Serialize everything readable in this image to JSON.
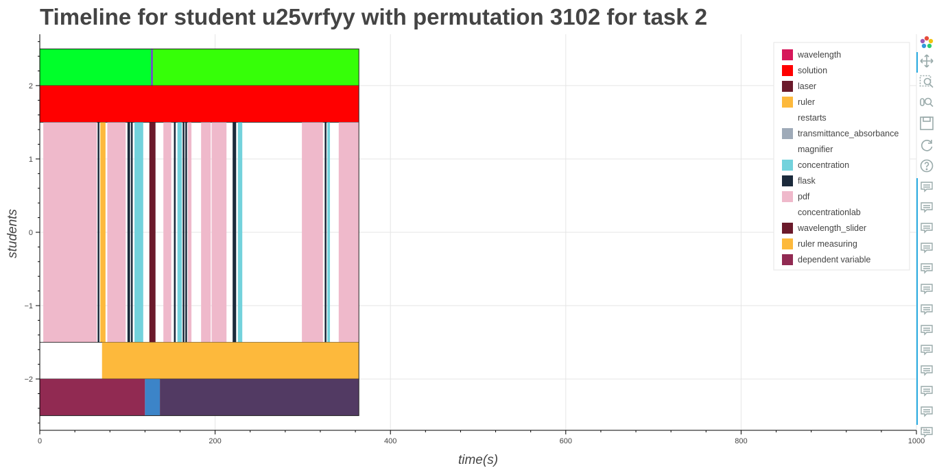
{
  "title": "Timeline for student u25vrfyy with permutation 3102 for task 2",
  "chart_data": {
    "type": "timeline",
    "title": "Timeline for student u25vrfyy with permutation 3102 for task 2",
    "xlabel": "time(s)",
    "ylabel": "students",
    "xlim": [
      0,
      1000
    ],
    "ylim": [
      -2.7,
      2.7
    ],
    "xticks": [
      0,
      200,
      400,
      600,
      800,
      1000
    ],
    "yticks": [
      -2,
      -1,
      0,
      1,
      2
    ],
    "ytick_labels": [
      "−2",
      "−1",
      "0",
      "1",
      "2"
    ],
    "grid": true,
    "legend_position": "top-right",
    "legend": [
      {
        "name": "wavelength",
        "color": "#D6175A"
      },
      {
        "name": "solution",
        "color": "#FF0000"
      },
      {
        "name": "laser",
        "color": "#6B1A2B"
      },
      {
        "name": "ruler",
        "color": "#FDB93C"
      },
      {
        "name": "restarts",
        "color": ""
      },
      {
        "name": "transmittance_absorbance",
        "color": "#9EAAB8"
      },
      {
        "name": "magnifier",
        "color": ""
      },
      {
        "name": "concentration",
        "color": "#73D2DC"
      },
      {
        "name": "flask",
        "color": "#1B2A3B"
      },
      {
        "name": "pdf",
        "color": "#EFB9CB"
      },
      {
        "name": "concentrationlab",
        "color": ""
      },
      {
        "name": "wavelength_slider",
        "color": "#6B1A2B"
      },
      {
        "name": "ruler measuring",
        "color": "#FDB93C"
      },
      {
        "name": "dependent variable",
        "color": "#912A52"
      }
    ],
    "rows": [
      {
        "y0": 2.0,
        "y1": 2.5,
        "segments": [
          {
            "x0": 0,
            "x1": 127,
            "color": "#00FF2A"
          },
          {
            "x0": 127,
            "x1": 129,
            "color": "#6A3BC6"
          },
          {
            "x0": 129,
            "x1": 364,
            "color": "#36FF08"
          }
        ]
      },
      {
        "y0": 1.5,
        "y1": 2.0,
        "segments": [
          {
            "x0": 0,
            "x1": 364,
            "color": "#FF0000"
          }
        ]
      },
      {
        "y0": -1.5,
        "y1": 1.5,
        "segments": [
          {
            "x0": 4,
            "x1": 65,
            "color": "#EFB9CB"
          },
          {
            "x0": 66,
            "x1": 68,
            "color": "#1B2A3B"
          },
          {
            "x0": 69,
            "x1": 75,
            "color": "#FDB93C"
          },
          {
            "x0": 77,
            "x1": 98,
            "color": "#EFB9CB"
          },
          {
            "x0": 100,
            "x1": 103,
            "color": "#1B2A3B"
          },
          {
            "x0": 104,
            "x1": 106,
            "color": "#1B2A3B"
          },
          {
            "x0": 108,
            "x1": 118,
            "color": "#73D2DC"
          },
          {
            "x0": 125,
            "x1": 132,
            "color": "#6B1A2B"
          },
          {
            "x0": 141,
            "x1": 150,
            "color": "#EFB9CB"
          },
          {
            "x0": 153,
            "x1": 155,
            "color": "#1B2A3B"
          },
          {
            "x0": 157,
            "x1": 162,
            "color": "#73D2DC"
          },
          {
            "x0": 163,
            "x1": 165,
            "color": "#1B2A3B"
          },
          {
            "x0": 166,
            "x1": 168,
            "color": "#1B2A3B"
          },
          {
            "x0": 169,
            "x1": 173,
            "color": "#EFB9CB"
          },
          {
            "x0": 184,
            "x1": 195,
            "color": "#EFB9CB"
          },
          {
            "x0": 196,
            "x1": 213,
            "color": "#EFB9CB"
          },
          {
            "x0": 220,
            "x1": 224,
            "color": "#1B2A3B"
          },
          {
            "x0": 226,
            "x1": 231,
            "color": "#73D2DC"
          },
          {
            "x0": 299,
            "x1": 323,
            "color": "#EFB9CB"
          },
          {
            "x0": 325,
            "x1": 327,
            "color": "#1B2A3B"
          },
          {
            "x0": 328,
            "x1": 331,
            "color": "#73D2DC"
          },
          {
            "x0": 341,
            "x1": 364,
            "color": "#EFB9CB"
          }
        ]
      },
      {
        "y0": -2.0,
        "y1": -1.5,
        "segments": [
          {
            "x0": 71,
            "x1": 364,
            "color": "#FDB93C"
          }
        ]
      },
      {
        "y0": -2.5,
        "y1": -2.0,
        "segments": [
          {
            "x0": 0,
            "x1": 120,
            "color": "#912A52"
          },
          {
            "x0": 120,
            "x1": 137,
            "color": "#3C84C8"
          },
          {
            "x0": 137,
            "x1": 364,
            "color": "#523A63"
          }
        ]
      }
    ],
    "outline": {
      "x0": 0,
      "x1": 364,
      "y0": -2.5,
      "y1": 2.5
    }
  },
  "toolbar": {
    "tools": [
      {
        "icon": "bokeh-logo-icon"
      },
      {
        "icon": "pan-icon"
      },
      {
        "icon": "box-zoom-icon"
      },
      {
        "icon": "wheel-zoom-icon"
      },
      {
        "icon": "save-icon"
      },
      {
        "icon": "reset-icon"
      },
      {
        "icon": "help-icon"
      }
    ],
    "hover_tool_count": 13,
    "more_label": "..."
  }
}
